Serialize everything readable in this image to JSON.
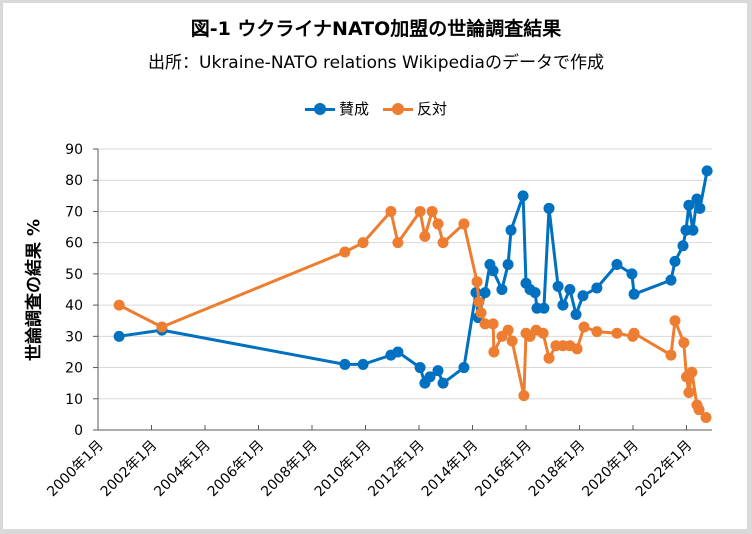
{
  "chart_data": {
    "type": "line",
    "title": "図-1  ウクライナNATO加盟の世論調査結果",
    "subtitle": "出所：Ukraine-NATO relations Wikipediaのデータで作成",
    "xlabel": "",
    "ylabel": "世論調査の結果  %",
    "ylim": [
      0,
      90
    ],
    "yticks": [
      0,
      10,
      20,
      30,
      40,
      50,
      60,
      70,
      80,
      90
    ],
    "xlim": [
      2000.0,
      2023.0
    ],
    "xticks": [
      {
        "value": 2000,
        "label": "2000年1月"
      },
      {
        "value": 2002,
        "label": "2002年1月"
      },
      {
        "value": 2004,
        "label": "2004年1月"
      },
      {
        "value": 2006,
        "label": "2006年1月"
      },
      {
        "value": 2008,
        "label": "2008年1月"
      },
      {
        "value": 2010,
        "label": "2010年1月"
      },
      {
        "value": 2012,
        "label": "2012年1月"
      },
      {
        "value": 2014,
        "label": "2014年1月"
      },
      {
        "value": 2016,
        "label": "2016年1月"
      },
      {
        "value": 2018,
        "label": "2018年1月"
      },
      {
        "value": 2020,
        "label": "2020年1月"
      },
      {
        "value": 2022,
        "label": "2022年1月"
      }
    ],
    "grid": true,
    "legend_position": "top-center",
    "series": [
      {
        "name": "賛成",
        "color": "#0070C0",
        "x": [
          2000.79,
          2002.39,
          2009.23,
          2009.91,
          2010.95,
          2011.21,
          2012.04,
          2012.22,
          2012.41,
          2012.71,
          2012.9,
          2013.68,
          2014.13,
          2014.21,
          2014.47,
          2014.65,
          2014.77,
          2015.1,
          2015.33,
          2015.44,
          2015.89,
          2016.0,
          2016.15,
          2016.34,
          2016.41,
          2016.67,
          2016.86,
          2017.2,
          2017.38,
          2017.64,
          2017.87,
          2018.13,
          2018.65,
          2019.4,
          2019.96,
          2020.04,
          2021.42,
          2021.57,
          2021.87,
          2021.98,
          2022.09,
          2022.24,
          2022.39,
          2022.5,
          2022.77
        ],
        "values": [
          30,
          32,
          21,
          21,
          24,
          25,
          20,
          15,
          17,
          19,
          15,
          20,
          44,
          36,
          44,
          53,
          51,
          45,
          53,
          64,
          75,
          47,
          45,
          44,
          39,
          39,
          71,
          46,
          40,
          45,
          37,
          43,
          45.5,
          53,
          50,
          43.5,
          48,
          54,
          59,
          64,
          72,
          64,
          74,
          71,
          83
        ]
      },
      {
        "name": "反対",
        "color": "#ED7D31",
        "x": [
          2000.79,
          2002.39,
          2009.23,
          2009.91,
          2010.95,
          2011.21,
          2012.04,
          2012.22,
          2012.49,
          2012.71,
          2012.9,
          2013.68,
          2014.17,
          2014.24,
          2014.32,
          2014.47,
          2014.77,
          2014.8,
          2015.1,
          2015.33,
          2015.48,
          2015.92,
          2016.0,
          2016.15,
          2016.38,
          2016.64,
          2016.86,
          2017.12,
          2017.38,
          2017.64,
          2017.91,
          2018.17,
          2018.65,
          2019.4,
          2019.99,
          2020.04,
          2021.42,
          2021.57,
          2021.9,
          2022.0,
          2022.09,
          2022.2,
          2022.39,
          2022.47,
          2022.73
        ],
        "values": [
          40,
          33,
          57,
          60,
          70,
          60,
          70,
          62,
          70,
          66,
          60,
          66,
          47.5,
          41,
          37.5,
          34,
          34,
          25,
          30,
          32,
          28.5,
          11,
          31,
          30,
          32,
          31,
          23,
          27,
          27,
          27,
          26,
          33,
          31.5,
          31,
          30,
          31,
          24,
          35,
          28,
          17,
          12,
          18.5,
          8,
          6.5,
          4
        ]
      }
    ]
  }
}
